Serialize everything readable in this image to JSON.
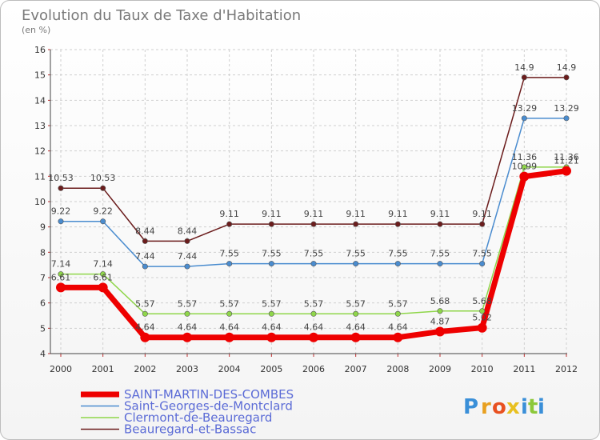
{
  "chart_data": {
    "type": "line",
    "title": "Evolution du Taux de Taxe d'Habitation",
    "subtitle": "(en %)",
    "xlabel": "",
    "ylabel": "",
    "categories": [
      "2000",
      "2001",
      "2002",
      "2003",
      "2004",
      "2005",
      "2006",
      "2007",
      "2008",
      "2009",
      "2010",
      "2011",
      "2012"
    ],
    "ylim": [
      4,
      16
    ],
    "yticks": [
      "4",
      "5",
      "6",
      "7",
      "8",
      "9",
      "10",
      "11",
      "12",
      "13",
      "14",
      "15",
      "16"
    ],
    "legend_position": "bottom-left",
    "series": [
      {
        "name": "Beauregard-et-Bassac",
        "color": "#6b1c1c",
        "values": [
          10.53,
          10.53,
          8.44,
          8.44,
          9.11,
          9.11,
          9.11,
          9.11,
          9.11,
          9.11,
          9.11,
          14.9,
          14.9
        ],
        "labels": [
          "10.53",
          "10.53",
          "8.44",
          "8.44",
          "9.11",
          "9.11",
          "9.11",
          "9.11",
          "9.11",
          "9.11",
          "9.11",
          "14.9",
          "14.9"
        ]
      },
      {
        "name": "Saint-Georges-de-Montclard",
        "color": "#4a8ccf",
        "values": [
          9.22,
          9.22,
          7.44,
          7.44,
          7.55,
          7.55,
          7.55,
          7.55,
          7.55,
          7.55,
          7.55,
          13.29,
          13.29
        ],
        "labels": [
          "9.22",
          "9.22",
          "7.44",
          "7.44",
          "7.55",
          "7.55",
          "7.55",
          "7.55",
          "7.55",
          "7.55",
          "7.55",
          "13.29",
          "13.29"
        ]
      },
      {
        "name": "Clermont-de-Beauregard",
        "color": "#8fd64a",
        "values": [
          7.14,
          7.14,
          5.57,
          5.57,
          5.57,
          5.57,
          5.57,
          5.57,
          5.57,
          5.68,
          5.68,
          11.36,
          11.36
        ],
        "labels": [
          "7.14",
          "7.14",
          "5.57",
          "5.57",
          "5.57",
          "5.57",
          "5.57",
          "5.57",
          "5.57",
          "5.68",
          "5.68",
          "11.36",
          "11.36"
        ]
      },
      {
        "name": "SAINT-MARTIN-DES-COMBES",
        "color": "#ee0000",
        "values": [
          6.61,
          6.61,
          4.64,
          4.64,
          4.64,
          4.64,
          4.64,
          4.64,
          4.64,
          4.87,
          5.02,
          10.99,
          11.21
        ],
        "labels": [
          "6.61",
          "6.61",
          "4.64",
          "4.64",
          "4.64",
          "4.64",
          "4.64",
          "4.64",
          "4.64",
          "4.87",
          "5.02",
          "10.99",
          "11.21"
        ]
      }
    ],
    "legend_order": [
      "SAINT-MARTIN-DES-COMBES",
      "Saint-Georges-de-Montclard",
      "Clermont-de-Beauregard",
      "Beauregard-et-Bassac"
    ]
  },
  "brand": {
    "letters": [
      "P",
      "r",
      "o",
      "x",
      "i",
      "t",
      "i"
    ],
    "colors": [
      "#3a8fd8",
      "#e8a020",
      "#e85020",
      "#e8c020",
      "#3a8fd8",
      "#8cc83a",
      "#3a8fd8"
    ]
  }
}
